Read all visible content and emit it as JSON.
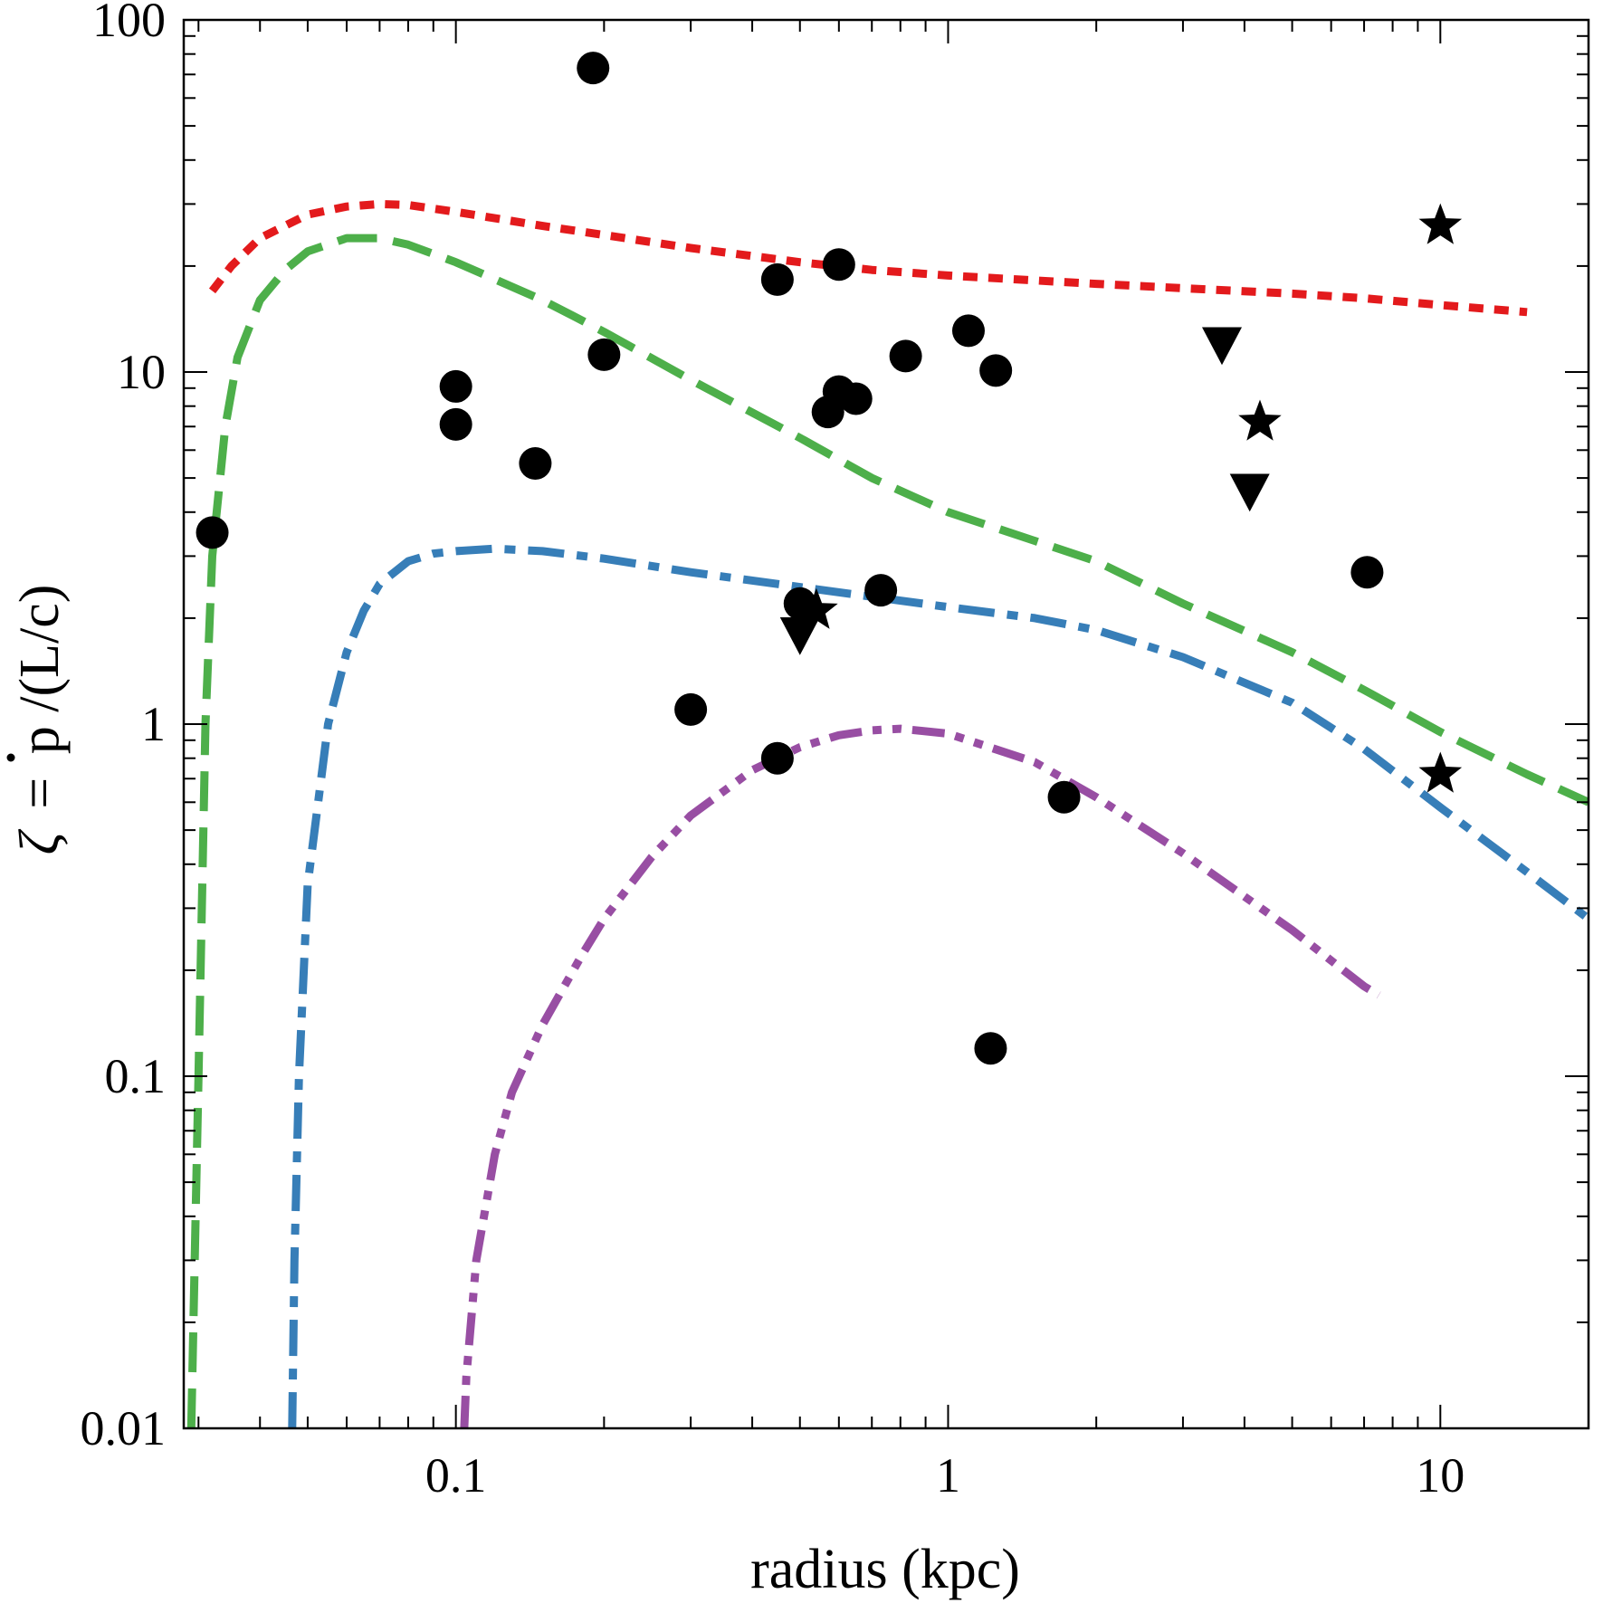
{
  "chart_data": {
    "type": "scatter",
    "title": "",
    "xlabel": "radius (kpc)",
    "ylabel": "ζ = ṗ/(L/c)",
    "ylabel_parts": {
      "symbol": "ζ",
      "equals": "=",
      "pdot": "p",
      "rest": "/(L/c)"
    },
    "xscale": "log",
    "yscale": "log",
    "xlim": [
      0.028,
      20
    ],
    "ylim": [
      0.01,
      100
    ],
    "grid": false,
    "x_ticks": [
      "0.1",
      "1",
      "10"
    ],
    "y_ticks": [
      "0.01",
      "0.1",
      "1",
      "10",
      "100"
    ],
    "points": {
      "circles": [
        [
          0.032,
          3.5
        ],
        [
          0.1,
          9.1
        ],
        [
          0.1,
          7.1
        ],
        [
          0.145,
          5.5
        ],
        [
          0.19,
          73
        ],
        [
          0.2,
          11.2
        ],
        [
          0.3,
          1.1
        ],
        [
          0.45,
          18.3
        ],
        [
          0.45,
          0.8
        ],
        [
          0.5,
          2.2
        ],
        [
          0.57,
          7.7
        ],
        [
          0.6,
          20.2
        ],
        [
          0.6,
          8.8
        ],
        [
          0.65,
          8.4
        ],
        [
          0.73,
          2.4
        ],
        [
          0.82,
          11.1
        ],
        [
          1.1,
          13.1
        ],
        [
          1.22,
          0.12
        ],
        [
          1.25,
          10.1
        ],
        [
          1.72,
          0.62
        ],
        [
          7.1,
          2.7
        ]
      ],
      "stars": [
        [
          10.0,
          26
        ],
        [
          4.3,
          7.2
        ],
        [
          0.54,
          2.1
        ],
        [
          10.0,
          0.72
        ]
      ],
      "triangles_down": [
        [
          3.6,
          12.0
        ],
        [
          4.1,
          4.6
        ],
        [
          0.5,
          1.8
        ]
      ]
    },
    "series": [
      {
        "name": "red short-dashed",
        "color": "#e31a1c",
        "x": [
          0.032,
          0.035,
          0.04,
          0.05,
          0.06,
          0.07,
          0.08,
          0.1,
          0.15,
          0.2,
          0.3,
          0.5,
          0.7,
          1.0,
          1.5,
          2,
          3,
          5,
          7,
          10,
          15
        ],
        "values": [
          17,
          20,
          24,
          28,
          29.5,
          30,
          29.8,
          28.5,
          26,
          24.5,
          22.5,
          20.5,
          19.5,
          18.8,
          18.2,
          17.8,
          17.3,
          16.7,
          16.2,
          15.5,
          14.8
        ]
      },
      {
        "name": "green long-dashed",
        "color": "#4daf4a",
        "x": [
          0.029,
          0.03,
          0.031,
          0.032,
          0.034,
          0.036,
          0.04,
          0.045,
          0.05,
          0.06,
          0.07,
          0.08,
          0.1,
          0.15,
          0.2,
          0.3,
          0.5,
          0.7,
          1,
          2,
          3,
          5,
          7,
          10,
          15,
          20
        ],
        "values": [
          0.01,
          0.1,
          1,
          3,
          7,
          11,
          16,
          19.5,
          22,
          24,
          24,
          23,
          20.5,
          16,
          13,
          9.5,
          6.5,
          5,
          4,
          2.9,
          2.2,
          1.6,
          1.25,
          0.95,
          0.72,
          0.6
        ]
      },
      {
        "name": "blue dash-dotted",
        "color": "#377eb8",
        "x": [
          0.0465,
          0.047,
          0.048,
          0.05,
          0.055,
          0.06,
          0.065,
          0.07,
          0.08,
          0.09,
          0.1,
          0.12,
          0.15,
          0.2,
          0.3,
          0.5,
          0.7,
          1,
          1.5,
          2,
          3,
          5,
          7,
          10,
          15,
          20
        ],
        "values": [
          0.01,
          0.03,
          0.1,
          0.35,
          1.0,
          1.6,
          2.1,
          2.5,
          2.9,
          3.05,
          3.1,
          3.15,
          3.1,
          2.95,
          2.7,
          2.45,
          2.3,
          2.15,
          2.0,
          1.85,
          1.55,
          1.15,
          0.85,
          0.58,
          0.38,
          0.28
        ]
      },
      {
        "name": "purple dash-dot-dotted",
        "color": "#984ea3",
        "x": [
          0.104,
          0.105,
          0.11,
          0.12,
          0.13,
          0.15,
          0.18,
          0.2,
          0.25,
          0.3,
          0.4,
          0.5,
          0.6,
          0.7,
          0.8,
          1,
          1.5,
          2,
          3,
          5,
          7,
          7.5
        ],
        "values": [
          0.01,
          0.014,
          0.03,
          0.06,
          0.09,
          0.14,
          0.22,
          0.28,
          0.42,
          0.55,
          0.74,
          0.86,
          0.93,
          0.96,
          0.97,
          0.94,
          0.78,
          0.62,
          0.43,
          0.26,
          0.18,
          0.17
        ]
      }
    ]
  }
}
